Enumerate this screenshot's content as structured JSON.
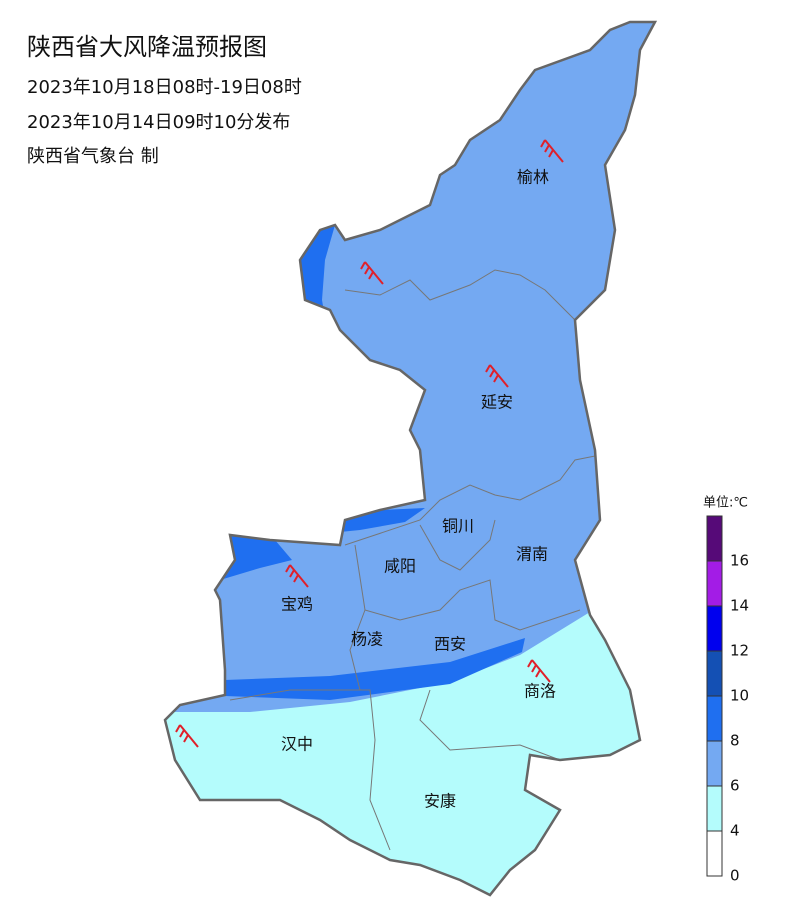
{
  "header": {
    "title": "陕西省大风降温预报图",
    "lines": [
      "2023年10月18日08时-19日08时",
      "2023年10月14日09时10分发布",
      "陕西省气象台 制"
    ]
  },
  "cities": [
    "榆林",
    "延安",
    "铜川",
    "渭南",
    "咸阳",
    "宝鸡",
    "杨凌",
    "西安",
    "商洛",
    "汉中",
    "安康"
  ],
  "legend": {
    "title": "单位:℃",
    "labels": [
      "0",
      "4",
      "6",
      "8",
      "10",
      "12",
      "14",
      "16"
    ],
    "colors": [
      "#ffffff",
      "#b4fcfc",
      "#74a9f2",
      "#1f6ff0",
      "#1450b4",
      "#0000ee",
      "#a31ce6",
      "#560a78"
    ]
  }
}
